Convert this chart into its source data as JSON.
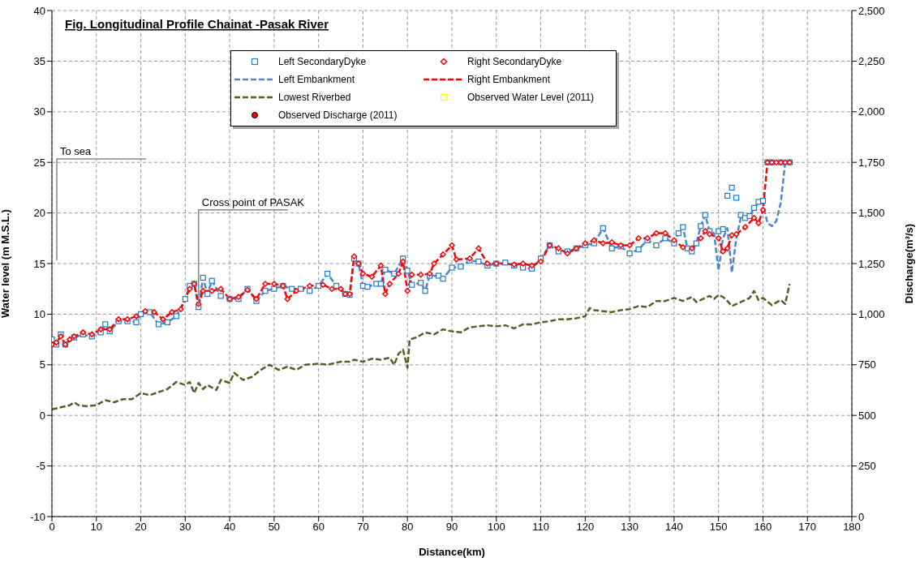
{
  "chart_data": {
    "type": "line",
    "title": "Fig. Longitudinal Profile Chainat -Pasak River",
    "xlabel": "Distance(km)",
    "ylabel": "Water level (m M.S.L.)",
    "y2label": "Discharge(m³/s)",
    "xlim": [
      0,
      180
    ],
    "xticks": [
      0,
      10,
      20,
      30,
      40,
      50,
      60,
      70,
      80,
      90,
      100,
      110,
      120,
      130,
      140,
      150,
      160,
      170,
      180
    ],
    "ylim": [
      -10,
      40
    ],
    "yticks": [
      -10,
      -5,
      0,
      5,
      10,
      15,
      20,
      25,
      30,
      35,
      40
    ],
    "y2lim": [
      0,
      2500
    ],
    "y2ticks": [
      0,
      250,
      500,
      750,
      {
        "value": 1000,
        "label": "1,000"
      },
      {
        "value": 1250,
        "label": "1,250"
      },
      {
        "value": 1500,
        "label": "1,500"
      },
      {
        "value": 1750,
        "label": "1,750"
      },
      {
        "value": 2000,
        "label": "2,000"
      },
      {
        "value": 2250,
        "label": "2,250"
      },
      {
        "value": 2500,
        "label": "2,500"
      }
    ],
    "grid": true,
    "legend": "top",
    "annotations": [
      "To sea",
      {
        "text": "Cross point of  PASAK",
        "x": 33,
        "y": 10.7
      }
    ],
    "series": [
      {
        "name": "Left SecondaryDyke",
        "type": "scatter",
        "marker": "square",
        "color": "#1f7acc",
        "x": [
          0,
          1,
          2,
          3,
          5,
          7,
          9,
          11,
          12,
          13,
          15,
          17,
          19,
          20,
          22,
          24,
          26,
          28,
          30,
          31,
          32,
          33,
          34,
          35,
          36,
          38,
          40,
          42,
          44,
          46,
          48,
          50,
          52,
          54,
          56,
          58,
          60,
          62,
          64,
          66,
          67,
          68,
          69,
          70,
          71,
          73,
          74,
          75,
          77,
          79,
          80,
          81,
          83,
          84,
          85,
          87,
          88,
          90,
          92,
          94,
          96,
          98,
          100,
          102,
          104,
          106,
          108,
          110,
          112,
          114,
          116,
          118,
          120,
          122,
          124,
          126,
          128,
          130,
          132,
          134,
          136,
          138,
          140,
          141,
          142,
          143,
          144,
          145,
          146,
          147,
          148,
          150,
          151,
          152,
          153,
          154,
          155,
          156,
          157,
          158,
          159,
          160,
          161,
          162,
          164,
          166
        ],
        "values": [
          7.5,
          7.0,
          8.0,
          7.0,
          7.7,
          8.0,
          7.8,
          8.2,
          9.0,
          8.3,
          9.3,
          9.3,
          9.2,
          10.0,
          10.2,
          9.0,
          9.2,
          9.8,
          11.5,
          12.8,
          13.0,
          10.7,
          13.6,
          12.0,
          13.3,
          11.8,
          11.5,
          11.5,
          12.5,
          11.3,
          12.3,
          12.5,
          12.8,
          12.5,
          12.5,
          12.3,
          12.8,
          14.0,
          12.8,
          12.0,
          11.9,
          15.5,
          15.0,
          12.8,
          12.7,
          13.0,
          13.0,
          14.4,
          14.0,
          15.5,
          14.3,
          12.9,
          13.1,
          12.3,
          13.8,
          13.8,
          13.5,
          14.6,
          14.7,
          15.3,
          15.2,
          14.8,
          15.0,
          15.1,
          14.8,
          14.6,
          14.5,
          15.5,
          16.8,
          16.2,
          16.2,
          16.5,
          16.8,
          17.0,
          18.5,
          16.5,
          16.7,
          16.0,
          16.4,
          17.3,
          16.8,
          17.5,
          17.0,
          18.0,
          18.6,
          16.5,
          16.2,
          17.0,
          18.7,
          19.8,
          18.2,
          18.2,
          18.4,
          21.7,
          22.5,
          21.5,
          19.8,
          19.5,
          19.7,
          20.5,
          21.1,
          21.2,
          25.0,
          25.0,
          25.0,
          25.0
        ]
      },
      {
        "name": "Right SecondaryDyke",
        "type": "scatter",
        "marker": "diamond",
        "color": "#ff0000",
        "x": [
          0,
          1,
          2,
          3,
          4,
          5,
          7,
          9,
          11,
          13,
          15,
          17,
          19,
          21,
          23,
          25,
          27,
          29,
          31,
          32,
          33,
          34,
          36,
          38,
          40,
          42,
          44,
          46,
          48,
          50,
          52,
          53,
          55,
          58,
          61,
          63,
          65,
          66,
          67,
          68,
          69,
          70,
          72,
          74,
          75,
          76,
          78,
          79,
          80,
          81,
          83,
          85,
          86,
          88,
          90,
          91,
          94,
          96,
          98,
          100,
          104,
          106,
          108,
          110,
          112,
          114,
          116,
          118,
          120,
          122,
          124,
          126,
          128,
          130,
          132,
          134,
          136,
          138,
          140,
          142,
          144,
          146,
          147,
          148,
          150,
          151,
          152,
          153,
          154,
          156,
          158,
          159,
          160,
          161,
          162,
          163,
          164,
          165,
          166
        ],
        "values": [
          7.0,
          7.2,
          7.8,
          7.0,
          7.5,
          7.8,
          8.2,
          8.0,
          8.5,
          8.5,
          9.5,
          9.5,
          9.8,
          10.3,
          10.2,
          9.5,
          10.2,
          10.5,
          12.5,
          13.0,
          11.0,
          12.3,
          12.3,
          12.5,
          11.5,
          11.7,
          12.4,
          11.5,
          13.0,
          13.0,
          12.8,
          11.5,
          12.3,
          12.8,
          12.9,
          12.5,
          12.5,
          12.0,
          12.0,
          15.7,
          15.0,
          14.0,
          13.7,
          14.8,
          12.0,
          13.0,
          14.0,
          15.2,
          12.3,
          13.9,
          13.9,
          14.0,
          15.0,
          15.9,
          16.8,
          15.4,
          15.5,
          16.5,
          15.0,
          15.0,
          14.9,
          15.0,
          14.8,
          15.2,
          16.8,
          16.5,
          16.0,
          16.5,
          17.0,
          17.3,
          17.0,
          17.1,
          16.8,
          16.8,
          17.5,
          17.5,
          18.0,
          18.0,
          17.3,
          16.6,
          16.5,
          17.5,
          18.2,
          17.9,
          17.5,
          16.2,
          16.5,
          17.8,
          17.9,
          18.6,
          19.5,
          19.0,
          20.3,
          25.0,
          25.0,
          25.0,
          25.0,
          25.0,
          25.0
        ]
      },
      {
        "name": "Left Embankment",
        "line_style": "dashed",
        "color": "#4f86c6",
        "x": [
          0,
          1,
          2,
          3,
          5,
          7,
          9,
          11,
          12,
          13,
          15,
          17,
          19,
          20,
          22,
          24,
          26,
          28,
          30,
          31,
          32,
          33,
          34,
          35,
          36,
          38,
          40,
          42,
          44,
          46,
          48,
          50,
          52,
          54,
          56,
          58,
          60,
          62,
          64,
          66,
          67,
          68,
          69,
          70,
          71,
          73,
          74,
          75,
          77,
          79,
          80,
          81,
          83,
          84,
          85,
          87,
          88,
          90,
          92,
          94,
          96,
          98,
          100,
          102,
          104,
          106,
          108,
          110,
          112,
          114,
          116,
          118,
          120,
          122,
          124,
          126,
          128,
          130,
          132,
          134,
          136,
          138,
          140,
          141,
          142,
          143,
          144,
          145,
          146,
          147,
          148,
          149,
          150,
          151,
          152,
          153,
          154,
          155,
          156,
          157,
          158,
          159,
          160,
          161,
          162,
          163,
          164,
          165,
          166
        ],
        "values": [
          7.5,
          7.0,
          8.0,
          7.0,
          7.7,
          8.0,
          7.8,
          8.2,
          9.0,
          8.3,
          9.3,
          9.3,
          9.2,
          10.0,
          10.2,
          9.0,
          9.2,
          9.8,
          11.5,
          12.8,
          13.0,
          10.7,
          13.6,
          12.0,
          13.3,
          11.8,
          11.5,
          11.5,
          12.5,
          11.3,
          12.3,
          12.5,
          12.8,
          12.5,
          12.5,
          12.3,
          12.8,
          14.0,
          12.8,
          12.0,
          11.9,
          15.5,
          15.0,
          12.8,
          12.7,
          13.0,
          13.0,
          14.4,
          14.0,
          15.5,
          14.3,
          12.9,
          13.1,
          12.3,
          13.8,
          13.8,
          13.5,
          14.6,
          14.7,
          15.3,
          15.2,
          14.8,
          15.0,
          15.1,
          14.8,
          14.6,
          14.5,
          15.5,
          16.8,
          16.2,
          16.2,
          16.5,
          16.8,
          17.0,
          18.5,
          16.5,
          16.7,
          16.0,
          16.4,
          17.3,
          16.8,
          17.5,
          17.0,
          18.0,
          18.6,
          16.5,
          16.2,
          17.0,
          18.7,
          19.8,
          18.2,
          18.0,
          14.3,
          17.5,
          18.5,
          14.1,
          17.5,
          19.5,
          19.5,
          19.7,
          20.5,
          21.0,
          21.0,
          19.0,
          18.7,
          19.2,
          21.0,
          25.0,
          25.0
        ]
      },
      {
        "name": "Right Embankment",
        "line_style": "dashed",
        "color": "#ff0000",
        "x": [
          0,
          1,
          2,
          3,
          4,
          5,
          7,
          9,
          11,
          13,
          15,
          17,
          19,
          21,
          23,
          25,
          27,
          29,
          31,
          32,
          33,
          34,
          36,
          38,
          40,
          42,
          44,
          46,
          48,
          50,
          52,
          53,
          55,
          58,
          61,
          63,
          65,
          66,
          67,
          68,
          69,
          70,
          72,
          74,
          75,
          76,
          78,
          79,
          80,
          81,
          83,
          85,
          86,
          88,
          90,
          91,
          94,
          96,
          98,
          100,
          104,
          106,
          108,
          110,
          112,
          114,
          116,
          118,
          120,
          122,
          124,
          126,
          128,
          130,
          132,
          134,
          136,
          138,
          140,
          142,
          144,
          146,
          147,
          148,
          150,
          151,
          152,
          153,
          154,
          156,
          158,
          159,
          160,
          161,
          162,
          163,
          164,
          165,
          166
        ],
        "values": [
          7.0,
          7.2,
          7.8,
          7.0,
          7.5,
          7.8,
          8.2,
          8.0,
          8.5,
          8.5,
          9.5,
          9.5,
          9.8,
          10.3,
          10.2,
          9.5,
          10.2,
          10.5,
          12.5,
          13.0,
          11.0,
          12.3,
          12.3,
          12.5,
          11.5,
          11.7,
          12.4,
          11.5,
          13.0,
          13.0,
          12.8,
          11.5,
          12.3,
          12.8,
          12.9,
          12.5,
          12.5,
          12.0,
          12.0,
          15.7,
          15.0,
          14.0,
          13.7,
          14.8,
          12.0,
          13.0,
          14.0,
          15.2,
          12.3,
          13.9,
          13.9,
          14.0,
          15.0,
          15.9,
          16.8,
          15.4,
          15.5,
          16.5,
          15.0,
          15.0,
          14.9,
          15.0,
          14.8,
          15.2,
          16.8,
          16.5,
          16.0,
          16.5,
          17.0,
          17.3,
          17.0,
          17.1,
          16.8,
          16.8,
          17.5,
          17.5,
          18.0,
          18.0,
          17.3,
          16.6,
          16.5,
          17.5,
          18.2,
          17.9,
          17.5,
          16.2,
          16.5,
          17.8,
          17.9,
          18.6,
          19.5,
          19.0,
          20.3,
          25.0,
          25.0,
          25.0,
          25.0,
          25.0,
          25.0
        ]
      },
      {
        "name": "Lowest Riverbed",
        "line_style": "dashed",
        "color": "#4f6228",
        "x": [
          0,
          2,
          4,
          5,
          6,
          8,
          10,
          12,
          14,
          16,
          18,
          20,
          22,
          24,
          26,
          28,
          30,
          31,
          32,
          33,
          34,
          35,
          37,
          38,
          40,
          41,
          43,
          45,
          47,
          49,
          51,
          53,
          55,
          57,
          60,
          62,
          65,
          67,
          68,
          70,
          72,
          74,
          76,
          77,
          78,
          79,
          80,
          80.5,
          82,
          84,
          86,
          88,
          90,
          92,
          94,
          96,
          98,
          100,
          102,
          104,
          106,
          108,
          110,
          112,
          114,
          116,
          118,
          120,
          121,
          122,
          124,
          126,
          128,
          130,
          132,
          134,
          136,
          138,
          140,
          142,
          144,
          145,
          147,
          148,
          149,
          150,
          151,
          152,
          153,
          155,
          157,
          158,
          159,
          160,
          162,
          164,
          165,
          166
        ],
        "values": [
          0.6,
          0.8,
          1.0,
          1.3,
          1.0,
          0.9,
          1.0,
          1.5,
          1.3,
          1.6,
          1.6,
          2.2,
          2.0,
          2.3,
          2.6,
          3.3,
          3.0,
          3.3,
          2.2,
          3.2,
          2.6,
          3.0,
          2.5,
          3.5,
          3.2,
          4.2,
          3.5,
          3.8,
          4.5,
          5.0,
          4.5,
          4.8,
          4.5,
          5.0,
          5.1,
          5.0,
          5.3,
          5.3,
          5.5,
          5.3,
          5.6,
          5.5,
          5.7,
          5.0,
          6.1,
          6.5,
          4.7,
          7.5,
          7.7,
          8.2,
          8.0,
          8.5,
          8.3,
          8.2,
          8.7,
          8.8,
          8.9,
          8.8,
          8.9,
          8.6,
          9.0,
          9.0,
          9.2,
          9.3,
          9.5,
          9.5,
          9.6,
          9.8,
          10.6,
          10.4,
          10.3,
          10.2,
          10.4,
          10.5,
          10.8,
          10.7,
          11.3,
          11.3,
          11.6,
          11.3,
          11.7,
          11.2,
          11.6,
          11.8,
          11.5,
          11.9,
          11.7,
          11.3,
          10.8,
          11.2,
          11.6,
          12.3,
          11.4,
          11.6,
          10.9,
          11.4,
          11.0,
          13.0
        ]
      },
      {
        "name": "Observed Water Level (2011)",
        "type": "scatter",
        "marker": "square",
        "color": "#ffff00"
      },
      {
        "name": "Observed Discharge (2011)",
        "type": "scatter",
        "marker": "circle",
        "color": "#ff0000"
      }
    ]
  }
}
